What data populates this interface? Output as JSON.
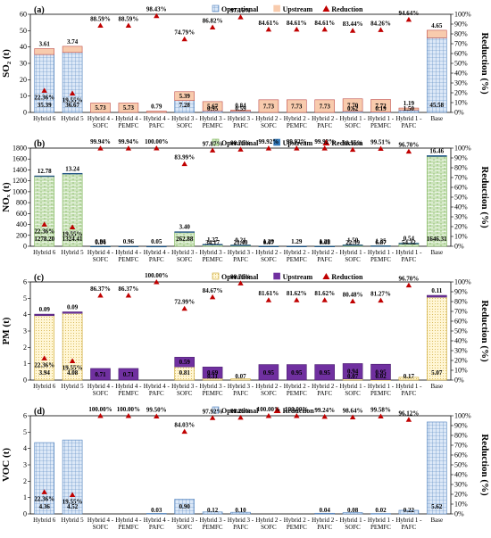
{
  "colors": {
    "reduction": "#c00000",
    "so2_operational": "#cfe0f5",
    "so2_upstream": "#f8cbad",
    "nox_operational": "#d9ead3",
    "nox_upstream": "#2e75b6",
    "pm_operational": "#fff2cc",
    "pm_upstream": "#7030a0",
    "voc_operational": "#cfe0f5"
  },
  "categories": [
    "Hybrid 6",
    "Hybrid 5",
    "Hybrid 4 - SOFC",
    "Hybrid 4 - PEMFC",
    "Hybrid 4 - PAFC",
    "Hybrid 3 - SOFC",
    "Hybrid 3 - PEMFC",
    "Hybrid 3 - PAFC",
    "Hybrid 2 - SOFC",
    "Hybrid 2 - PEMFC",
    "Hybrid 2 - PAFC",
    "Hybrid 1 - SOFC",
    "Hybrid 1 - PEMFC",
    "Hybrid 1 - PAFC",
    "Base"
  ],
  "chart_data": [
    {
      "type": "bar",
      "panel_label": "(a)",
      "ylabel": "SO₂ (t)",
      "y2label": "Reduction (%)",
      "ylim": [
        0,
        60
      ],
      "yticks": [
        "0",
        "10",
        "20",
        "30",
        "40",
        "50",
        "60"
      ],
      "y2lim": [
        0,
        100
      ],
      "y2ticks": [
        "0%",
        "10%",
        "20%",
        "30%",
        "40%",
        "50%",
        "60%",
        "70%",
        "80%",
        "90%",
        "100%"
      ],
      "legend": [
        "Operational",
        "Upstream",
        "Reduction"
      ],
      "series": [
        {
          "name": "Operational",
          "values": [
            35.39,
            36.67,
            0,
            0,
            0,
            7.28,
            0.95,
            0.59,
            0,
            0,
            0,
            0.62,
            0.19,
            1.5,
            45.58
          ]
        },
        {
          "name": "Upstream",
          "values": [
            3.61,
            3.74,
            5.73,
            5.73,
            0.79,
            5.39,
            5.67,
            0.84,
            7.73,
            7.73,
            7.73,
            7.7,
            7.72,
            1.19,
            4.65
          ]
        },
        {
          "name": "Reduction",
          "values": [
            22.36,
            19.55,
            88.59,
            88.59,
            98.43,
            74.79,
            86.82,
            97.16,
            84.61,
            84.61,
            84.61,
            83.44,
            84.26,
            94.64,
            null
          ]
        }
      ],
      "operational_labels": [
        "35.39",
        "36.67",
        "",
        "",
        "",
        "7.28",
        "0.95",
        "0.59",
        "",
        "",
        "",
        "0.62",
        "0.19",
        "1.50",
        "45.58"
      ],
      "upstream_labels": [
        "3.61",
        "3.74",
        "5.73",
        "5.73",
        "0.79",
        "5.39",
        "5.67",
        "0.84",
        "7.73",
        "7.73",
        "7.73",
        "7.70",
        "7.72",
        "1.19",
        "4.65"
      ],
      "reduction_labels": [
        "22.36%",
        "19.55%",
        "88.59%",
        "88.59%",
        "98.43%",
        "74.79%",
        "86.82%",
        "97.16%",
        "84.61%",
        "84.61%",
        "84.61%",
        "83.44%",
        "84.26%",
        "94.64%",
        ""
      ]
    },
    {
      "type": "bar",
      "panel_label": "(b)",
      "ylabel": "NOₓ (t)",
      "y2label": "Reduction (%)",
      "ylim": [
        0,
        1800
      ],
      "yticks": [
        "0",
        "200",
        "400",
        "600",
        "800",
        "1000",
        "1200",
        "1400",
        "1600",
        "1800"
      ],
      "y2lim": [
        0,
        100
      ],
      "y2ticks": [
        "0%",
        "10%",
        "20%",
        "30%",
        "40%",
        "50%",
        "60%",
        "70%",
        "80%",
        "90%",
        "100%"
      ],
      "legend": [
        "Operational",
        "Upstream",
        "Reduction"
      ],
      "series": [
        {
          "name": "Operational",
          "values": [
            1278.2,
            1324.41,
            0.04,
            0,
            0,
            262.88,
            34.17,
            21.4,
            0.07,
            0,
            0.08,
            22.39,
            6.87,
            54.32,
            1646.31
          ]
        },
        {
          "name": "Upstream",
          "values": [
            12.78,
            13.24,
            0.96,
            0.96,
            0.05,
            3.4,
            1.27,
            0.21,
            1.29,
            1.29,
            1.29,
            1.5,
            1.35,
            0.54,
            16.46
          ]
        },
        {
          "name": "Reduction",
          "values": [
            22.36,
            19.55,
            99.94,
            99.94,
            100.0,
            83.99,
            97.87,
            98.7,
            99.92,
            99.92,
            99.92,
            98.56,
            99.51,
            96.7,
            null
          ]
        }
      ],
      "operational_labels": [
        "1278.20",
        "1324.41",
        "0.04",
        "",
        "",
        "262.88",
        "34.17",
        "21.40",
        "0.07",
        "",
        "0.08",
        "22.39",
        "6.87",
        "54.32",
        "1646.31"
      ],
      "upstream_labels": [
        "12.78",
        "13.24",
        "0.96",
        "0.96",
        "0.05",
        "3.40",
        "1.27",
        "0.21",
        "1.29",
        "1.29",
        "1.29",
        "1.50",
        "1.35",
        "0.54",
        "16.46"
      ],
      "reduction_labels": [
        "22.36%",
        "19.55%",
        "99.94%",
        "99.94%",
        "100.00%",
        "83.99%",
        "97.87%",
        "98.70%",
        "99.92%",
        "99.92%",
        "99.92%",
        "98.56%",
        "99.51%",
        "96.70%",
        ""
      ]
    },
    {
      "type": "bar",
      "panel_label": "(c)",
      "ylabel": "PM (t)",
      "y2label": "Reduction (%)",
      "ylim": [
        0,
        6
      ],
      "yticks": [
        "0",
        "1",
        "2",
        "3",
        "4",
        "5",
        "6"
      ],
      "y2lim": [
        0,
        100
      ],
      "y2ticks": [
        "0%",
        "10%",
        "20%",
        "30%",
        "40%",
        "50%",
        "60%",
        "70%",
        "80%",
        "90%",
        "100%"
      ],
      "legend": [
        "Operational",
        "Upstream",
        "Reduction"
      ],
      "series": [
        {
          "name": "Operational",
          "values": [
            3.94,
            4.08,
            0,
            0,
            0,
            0.81,
            0.11,
            0.07,
            0,
            0,
            0,
            0.07,
            0.02,
            0.17,
            5.07
          ]
        },
        {
          "name": "Upstream",
          "values": [
            0.09,
            0.09,
            0.71,
            0.71,
            0,
            0.59,
            0.69,
            0,
            0.95,
            0.95,
            0.95,
            0.94,
            0.95,
            0,
            0.11
          ]
        },
        {
          "name": "Reduction",
          "values": [
            22.36,
            19.55,
            86.37,
            86.37,
            100.0,
            72.99,
            84.67,
            98.7,
            81.61,
            81.62,
            81.62,
            80.48,
            81.27,
            96.7,
            null
          ]
        }
      ],
      "operational_labels": [
        "3.94",
        "4.08",
        "",
        "",
        "",
        "0.81",
        "0.11",
        "0.07",
        "",
        "",
        "",
        "0.07",
        "0.02",
        "0.17",
        "5.07"
      ],
      "upstream_labels": [
        "0.09",
        "0.09",
        "0.71",
        "0.71",
        "",
        "0.59",
        "0.69",
        "",
        "0.95",
        "0.95",
        "0.95",
        "0.94",
        "0.95",
        "",
        "0.11"
      ],
      "reduction_labels": [
        "22.36%",
        "19.55%",
        "86.37%",
        "86.37%",
        "100.00%",
        "72.99%",
        "84.67%",
        "98.70%",
        "81.61%",
        "81.62%",
        "81.62%",
        "80.48%",
        "81.27%",
        "96.70%",
        ""
      ]
    },
    {
      "type": "bar",
      "panel_label": "(d)",
      "ylabel": "VOC (t)",
      "y2label": "Reduction (%)",
      "ylim": [
        0,
        6
      ],
      "yticks": [
        "0",
        "1",
        "2",
        "3",
        "4",
        "5",
        "6"
      ],
      "y2lim": [
        0,
        100
      ],
      "y2ticks": [
        "0%",
        "10%",
        "20%",
        "30%",
        "40%",
        "50%",
        "60%",
        "70%",
        "80%",
        "90%",
        "100%"
      ],
      "legend": [
        "Operational",
        "Reduction"
      ],
      "series": [
        {
          "name": "Operational",
          "values": [
            4.36,
            4.52,
            0,
            0,
            0.03,
            0.9,
            0.12,
            0.1,
            0,
            0,
            0.04,
            0.08,
            0.02,
            0.22,
            5.62
          ]
        },
        {
          "name": "Reduction",
          "values": [
            22.36,
            19.55,
            100.0,
            100.0,
            99.5,
            84.03,
            97.92,
            98.26,
            100.0,
            100.0,
            99.24,
            98.64,
            99.58,
            96.12,
            null
          ]
        }
      ],
      "operational_labels": [
        "4.36",
        "4.52",
        "",
        "",
        "0.03",
        "0.90",
        "0.12",
        "0.10",
        "",
        "",
        "0.04",
        "0.08",
        "0.02",
        "0.22",
        "5.62"
      ],
      "reduction_labels": [
        "22.36%",
        "19.55%",
        "100.00%",
        "100.00%",
        "99.50%",
        "84.03%",
        "97.92%",
        "98.26%",
        "100.00%",
        "100.00%",
        "99.24%",
        "98.64%",
        "99.58%",
        "96.12%",
        ""
      ]
    }
  ]
}
